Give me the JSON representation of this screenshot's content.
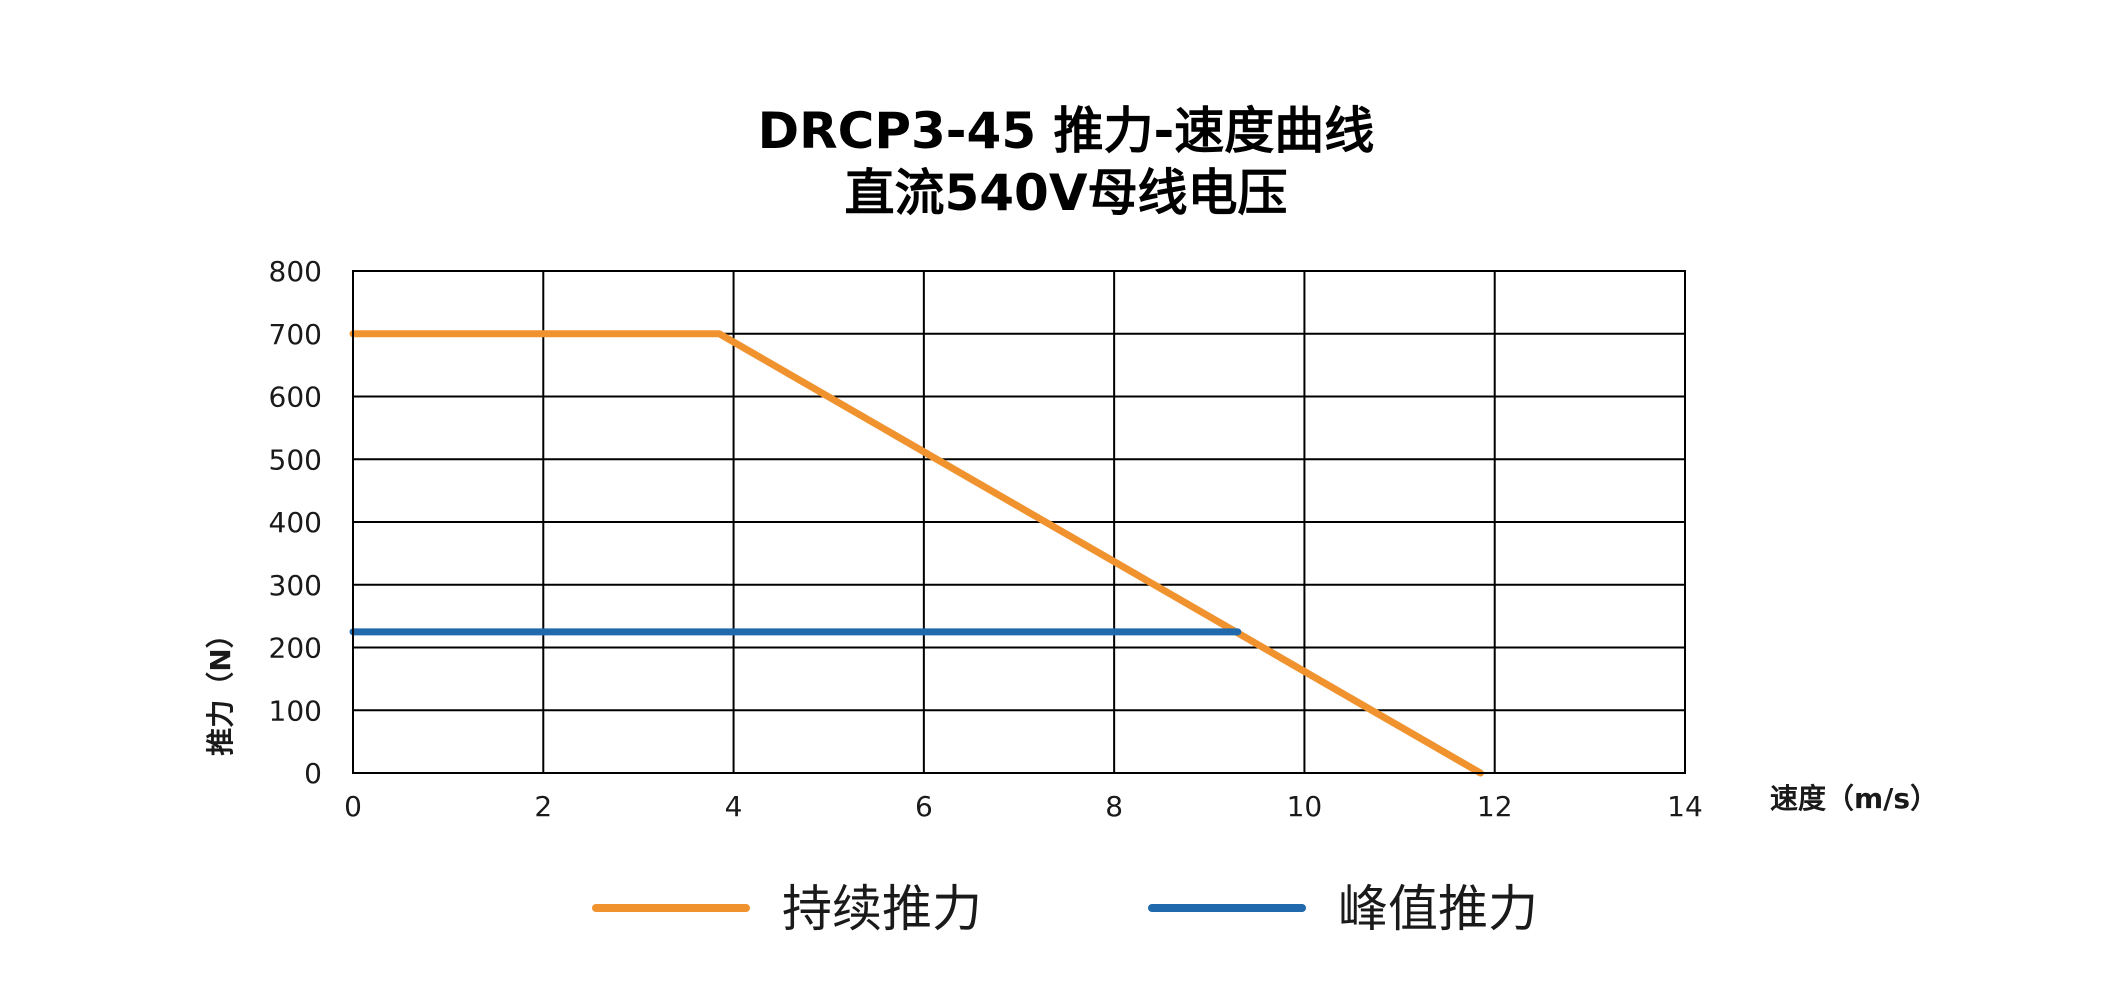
{
  "chart_data": {
    "type": "line",
    "title": "DRCP3-45 推力-速度曲线",
    "subtitle": "直流540V母线电压",
    "xlabel": "速度（m/s）",
    "ylabel": "推力（N）",
    "xlim": [
      0,
      14
    ],
    "ylim": [
      0,
      800
    ],
    "xticks": [
      "0",
      "2",
      "4",
      "6",
      "8",
      "10",
      "12",
      "14"
    ],
    "yticks": [
      "0",
      "100",
      "200",
      "300",
      "400",
      "500",
      "600",
      "700",
      "800"
    ],
    "grid": true,
    "legend_position": "bottom",
    "series": [
      {
        "name": "持续推力",
        "color": "#F0922E",
        "x": [
          0,
          3.85,
          11.85
        ],
        "y": [
          700,
          700,
          0
        ]
      },
      {
        "name": "峰值推力",
        "color": "#1F69AC",
        "x": [
          0,
          9.3
        ],
        "y": [
          225,
          225
        ]
      }
    ]
  }
}
